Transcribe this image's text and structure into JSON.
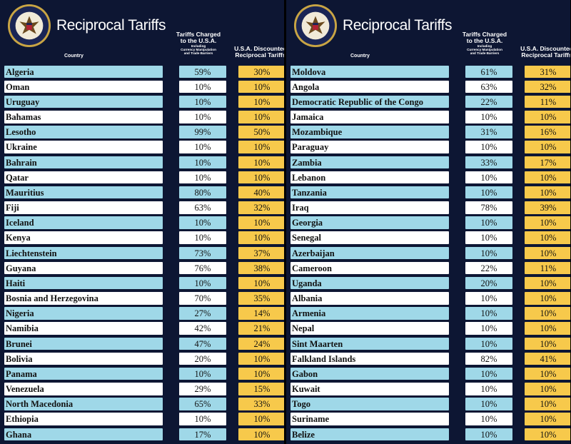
{
  "colors": {
    "background": "#0d1633",
    "row_highlight": "#9fd8e8",
    "row_plain": "#ffffff",
    "discount": "#f7c94b",
    "text": "#111111",
    "header_text": "#ffffff"
  },
  "seal_icon": "presidential-seal",
  "seal_text": "SEAL OF THE PRESIDENT OF THE UNITED STATES",
  "left": {
    "title": "Reciprocal Tariffs",
    "header_country": "Country",
    "header_charged_line1": "Tariffs Charged",
    "header_charged_line2": "to the U.S.A.",
    "header_charged_line3": "Including",
    "header_charged_line4": "Currency Manipulation",
    "header_charged_line5": "and Trade Barriers",
    "header_discounted_line1": "U.S.A. Discounted",
    "header_discounted_line2": "Reciprocal Tariffs",
    "rows": [
      {
        "country": "Algeria",
        "charged": "59%",
        "discounted": "30%"
      },
      {
        "country": "Oman",
        "charged": "10%",
        "discounted": "10%"
      },
      {
        "country": "Uruguay",
        "charged": "10%",
        "discounted": "10%"
      },
      {
        "country": "Bahamas",
        "charged": "10%",
        "discounted": "10%"
      },
      {
        "country": "Lesotho",
        "charged": "99%",
        "discounted": "50%"
      },
      {
        "country": "Ukraine",
        "charged": "10%",
        "discounted": "10%"
      },
      {
        "country": "Bahrain",
        "charged": "10%",
        "discounted": "10%"
      },
      {
        "country": "Qatar",
        "charged": "10%",
        "discounted": "10%"
      },
      {
        "country": "Mauritius",
        "charged": "80%",
        "discounted": "40%"
      },
      {
        "country": "Fiji",
        "charged": "63%",
        "discounted": "32%"
      },
      {
        "country": "Iceland",
        "charged": "10%",
        "discounted": "10%"
      },
      {
        "country": "Kenya",
        "charged": "10%",
        "discounted": "10%"
      },
      {
        "country": "Liechtenstein",
        "charged": "73%",
        "discounted": "37%"
      },
      {
        "country": "Guyana",
        "charged": "76%",
        "discounted": "38%"
      },
      {
        "country": "Haiti",
        "charged": "10%",
        "discounted": "10%"
      },
      {
        "country": "Bosnia and Herzegovina",
        "charged": "70%",
        "discounted": "35%"
      },
      {
        "country": "Nigeria",
        "charged": "27%",
        "discounted": "14%"
      },
      {
        "country": "Namibia",
        "charged": "42%",
        "discounted": "21%"
      },
      {
        "country": "Brunei",
        "charged": "47%",
        "discounted": "24%"
      },
      {
        "country": "Bolivia",
        "charged": "20%",
        "discounted": "10%"
      },
      {
        "country": "Panama",
        "charged": "10%",
        "discounted": "10%"
      },
      {
        "country": "Venezuela",
        "charged": "29%",
        "discounted": "15%"
      },
      {
        "country": "North Macedonia",
        "charged": "65%",
        "discounted": "33%"
      },
      {
        "country": "Ethiopia",
        "charged": "10%",
        "discounted": "10%"
      },
      {
        "country": "Ghana",
        "charged": "17%",
        "discounted": "10%"
      }
    ]
  },
  "right": {
    "title": "Reciprocal Tariffs",
    "header_country": "Country",
    "header_charged_line1": "Tariffs Charged",
    "header_charged_line2": "to the U.S.A.",
    "header_charged_line3": "Including",
    "header_charged_line4": "Currency Manipulation",
    "header_charged_line5": "and Trade Barriers",
    "header_discounted_line1": "U.S.A. Discounted",
    "header_discounted_line2": "Reciprocal Tariffs",
    "rows": [
      {
        "country": "Moldova",
        "charged": "61%",
        "discounted": "31%"
      },
      {
        "country": "Angola",
        "charged": "63%",
        "discounted": "32%"
      },
      {
        "country": "Democratic Republic of the Congo",
        "charged": "22%",
        "discounted": "11%"
      },
      {
        "country": "Jamaica",
        "charged": "10%",
        "discounted": "10%"
      },
      {
        "country": "Mozambique",
        "charged": "31%",
        "discounted": "16%"
      },
      {
        "country": "Paraguay",
        "charged": "10%",
        "discounted": "10%"
      },
      {
        "country": "Zambia",
        "charged": "33%",
        "discounted": "17%"
      },
      {
        "country": "Lebanon",
        "charged": "10%",
        "discounted": "10%"
      },
      {
        "country": "Tanzania",
        "charged": "10%",
        "discounted": "10%"
      },
      {
        "country": "Iraq",
        "charged": "78%",
        "discounted": "39%"
      },
      {
        "country": "Georgia",
        "charged": "10%",
        "discounted": "10%"
      },
      {
        "country": "Senegal",
        "charged": "10%",
        "discounted": "10%"
      },
      {
        "country": "Azerbaijan",
        "charged": "10%",
        "discounted": "10%"
      },
      {
        "country": "Cameroon",
        "charged": "22%",
        "discounted": "11%"
      },
      {
        "country": "Uganda",
        "charged": "20%",
        "discounted": "10%"
      },
      {
        "country": "Albania",
        "charged": "10%",
        "discounted": "10%"
      },
      {
        "country": "Armenia",
        "charged": "10%",
        "discounted": "10%"
      },
      {
        "country": "Nepal",
        "charged": "10%",
        "discounted": "10%"
      },
      {
        "country": "Sint Maarten",
        "charged": "10%",
        "discounted": "10%"
      },
      {
        "country": "Falkland Islands",
        "charged": "82%",
        "discounted": "41%"
      },
      {
        "country": "Gabon",
        "charged": "10%",
        "discounted": "10%"
      },
      {
        "country": "Kuwait",
        "charged": "10%",
        "discounted": "10%"
      },
      {
        "country": "Togo",
        "charged": "10%",
        "discounted": "10%"
      },
      {
        "country": "Suriname",
        "charged": "10%",
        "discounted": "10%"
      },
      {
        "country": "Belize",
        "charged": "10%",
        "discounted": "10%"
      }
    ]
  }
}
